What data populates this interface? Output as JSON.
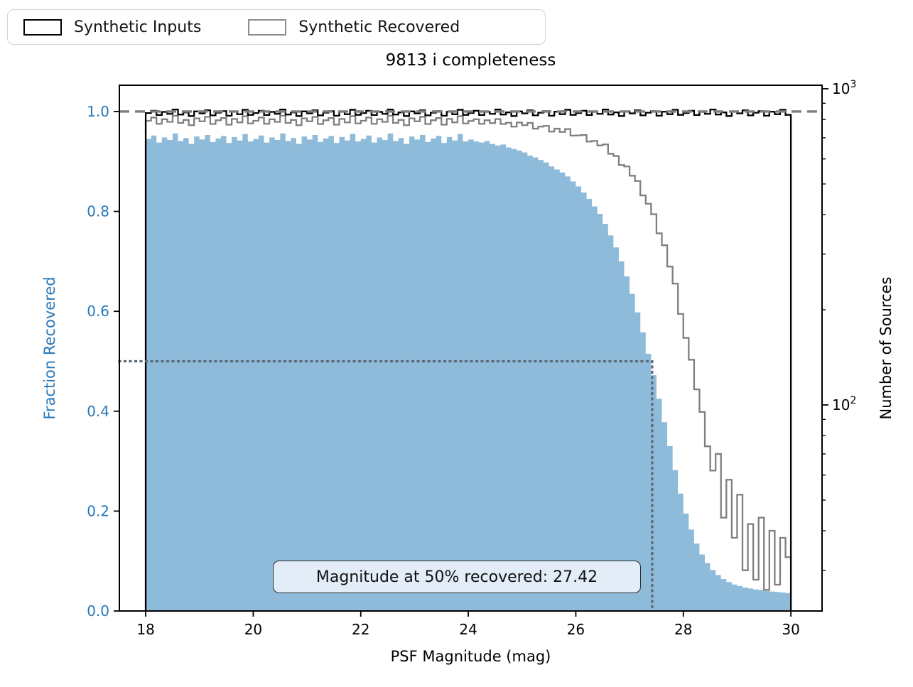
{
  "chart_data": {
    "type": "bar",
    "title": "9813 i completeness",
    "xlabel": "PSF Magnitude (mag)",
    "ylabel_left": "Fraction Recovered",
    "ylabel_right": "Number of Sources",
    "legend": [
      "Synthetic Inputs",
      "Synthetic Recovered"
    ],
    "annotation": "Magnitude at 50% recovered: 27.42",
    "mag_at_50_percent_recovered": 27.42,
    "xlim": [
      17.51,
      30.58
    ],
    "ylim_left": [
      0,
      1.0526
    ],
    "ylim_right": [
      22.3,
      1026
    ],
    "y_right_scale": "log",
    "grid": false,
    "legend_position": "upper-left-outside",
    "x_ticks": {
      "values": [
        18,
        20,
        22,
        24,
        26,
        28,
        30
      ],
      "labels": [
        "18",
        "20",
        "22",
        "24",
        "26",
        "28",
        "30"
      ]
    },
    "y_left_ticks": {
      "values": [
        0.0,
        0.2,
        0.4,
        0.6,
        0.8,
        1.0
      ],
      "labels": [
        "0.0",
        "0.2",
        "0.4",
        "0.6",
        "0.8",
        "1.0"
      ]
    },
    "y_right_ticks": [
      {
        "value": 1000,
        "mantissa": "10",
        "exponent": "3"
      },
      {
        "value": 100,
        "mantissa": "10",
        "exponent": "2"
      }
    ],
    "reference_lines": {
      "dashed_fraction": 1.0,
      "dotted_fraction": 0.5,
      "dotted_magnitude": 27.42
    },
    "bins": {
      "start": 18.0,
      "end": 30.0,
      "width": 0.1
    },
    "series": {
      "fraction_recovered": [
        0.945,
        0.952,
        0.938,
        0.948,
        0.943,
        0.956,
        0.941,
        0.947,
        0.935,
        0.95,
        0.944,
        0.953,
        0.939,
        0.946,
        0.951,
        0.937,
        0.949,
        0.942,
        0.955,
        0.94,
        0.945,
        0.952,
        0.938,
        0.948,
        0.943,
        0.956,
        0.941,
        0.947,
        0.935,
        0.95,
        0.944,
        0.953,
        0.939,
        0.946,
        0.951,
        0.937,
        0.949,
        0.942,
        0.955,
        0.94,
        0.945,
        0.952,
        0.938,
        0.948,
        0.943,
        0.956,
        0.941,
        0.947,
        0.935,
        0.95,
        0.944,
        0.953,
        0.939,
        0.946,
        0.951,
        0.937,
        0.949,
        0.942,
        0.955,
        0.94,
        0.944,
        0.94,
        0.938,
        0.941,
        0.935,
        0.932,
        0.934,
        0.928,
        0.925,
        0.922,
        0.918,
        0.912,
        0.908,
        0.903,
        0.898,
        0.89,
        0.884,
        0.878,
        0.87,
        0.86,
        0.85,
        0.838,
        0.825,
        0.81,
        0.795,
        0.775,
        0.752,
        0.728,
        0.7,
        0.67,
        0.635,
        0.598,
        0.558,
        0.515,
        0.472,
        0.425,
        0.378,
        0.33,
        0.282,
        0.235,
        0.195,
        0.163,
        0.135,
        0.113,
        0.096,
        0.082,
        0.072,
        0.064,
        0.058,
        0.053,
        0.05,
        0.047,
        0.045,
        0.043,
        0.042,
        0.04,
        0.039,
        0.038,
        0.037,
        0.036
      ],
      "synthetic_inputs_counts": [
        838,
        852,
        826,
        845,
        833,
        860,
        829,
        842,
        820,
        848,
        836,
        855,
        824,
        840,
        850,
        822,
        846,
        831,
        858,
        827,
        838,
        852,
        826,
        845,
        833,
        860,
        829,
        842,
        820,
        848,
        836,
        855,
        824,
        840,
        850,
        822,
        846,
        831,
        858,
        827,
        838,
        852,
        826,
        845,
        833,
        860,
        829,
        842,
        820,
        848,
        836,
        855,
        824,
        840,
        850,
        822,
        846,
        831,
        858,
        827,
        838,
        852,
        826,
        845,
        833,
        860,
        829,
        842,
        820,
        848,
        836,
        855,
        824,
        840,
        850,
        822,
        846,
        831,
        858,
        827,
        838,
        852,
        826,
        845,
        833,
        860,
        829,
        842,
        820,
        848,
        836,
        855,
        824,
        840,
        850,
        822,
        846,
        831,
        858,
        827,
        838,
        852,
        826,
        845,
        833,
        860,
        829,
        842,
        820,
        848,
        836,
        855,
        824,
        840,
        850,
        822,
        846,
        831,
        858,
        827
      ],
      "synthetic_recovered_counts": [
        792,
        811,
        775,
        801,
        786,
        822,
        780,
        797,
        767,
        806,
        789,
        815,
        774,
        795,
        808,
        770,
        803,
        783,
        819,
        777,
        792,
        811,
        775,
        801,
        786,
        822,
        780,
        797,
        767,
        806,
        789,
        815,
        774,
        795,
        808,
        770,
        803,
        783,
        819,
        777,
        792,
        811,
        775,
        801,
        786,
        822,
        780,
        797,
        767,
        806,
        789,
        815,
        774,
        795,
        808,
        770,
        803,
        783,
        819,
        777,
        791,
        801,
        775,
        795,
        779,
        802,
        774,
        781,
        759,
        782,
        767,
        780,
        748,
        759,
        763,
        732,
        748,
        730,
        746,
        711,
        712,
        714,
        681,
        684,
        662,
        667,
        623,
        613,
        574,
        568,
        531,
        511,
        460,
        433,
        401,
        349,
        320,
        274,
        242,
        194,
        163,
        139,
        112,
        95,
        74,
        62,
        70,
        44,
        58,
        38,
        52,
        30,
        42,
        28,
        44,
        26,
        40,
        27,
        38,
        33
      ]
    },
    "colors": {
      "bar_fill": "#8fbbda",
      "inputs_line": "#000000",
      "recovered_line": "#7f7f7f",
      "dashed_line": "#7f7f7f",
      "dotted_line": "#5a6978",
      "left_axis_text": "#2878b8"
    }
  }
}
